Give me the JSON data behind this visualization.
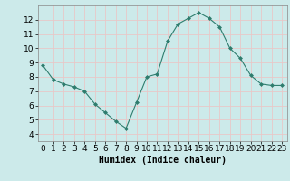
{
  "x": [
    0,
    1,
    2,
    3,
    4,
    5,
    6,
    7,
    8,
    9,
    10,
    11,
    12,
    13,
    14,
    15,
    16,
    17,
    18,
    19,
    20,
    21,
    22,
    23
  ],
  "y": [
    8.8,
    7.8,
    7.5,
    7.3,
    7.0,
    6.1,
    5.5,
    4.9,
    4.4,
    6.2,
    8.0,
    8.2,
    10.5,
    11.7,
    12.1,
    12.5,
    12.1,
    11.5,
    10.0,
    9.3,
    8.1,
    7.5,
    7.4,
    7.4
  ],
  "line_color": "#2e7d6e",
  "marker": "D",
  "marker_size": 2,
  "bg_color": "#cceaea",
  "grid_color": "#e8c8c8",
  "xlabel": "Humidex (Indice chaleur)",
  "xlabel_fontsize": 7,
  "xlim": [
    -0.5,
    23.5
  ],
  "ylim": [
    3.5,
    13.0
  ],
  "yticks": [
    4,
    5,
    6,
    7,
    8,
    9,
    10,
    11,
    12
  ],
  "xticks": [
    0,
    1,
    2,
    3,
    4,
    5,
    6,
    7,
    8,
    9,
    10,
    11,
    12,
    13,
    14,
    15,
    16,
    17,
    18,
    19,
    20,
    21,
    22,
    23
  ],
  "tick_fontsize": 6.5
}
